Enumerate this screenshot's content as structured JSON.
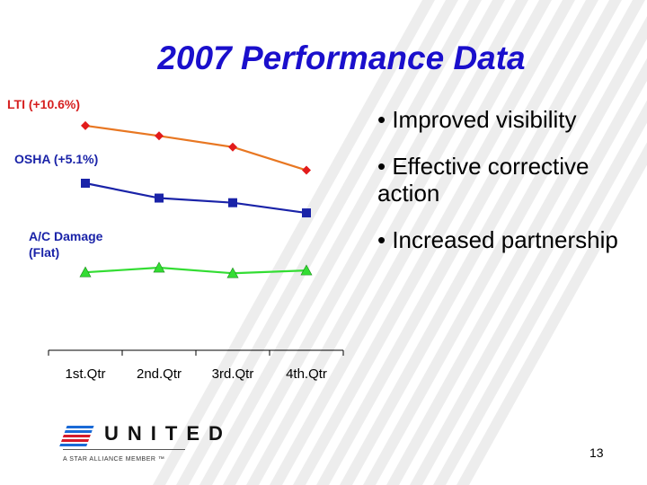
{
  "slide": {
    "title": "2007 Performance Data",
    "bullets": [
      "• Improved visibility",
      "• Effective corrective action",
      "• Increased partnership"
    ],
    "page_number": "13"
  },
  "logo": {
    "wordmark": "UNITED",
    "tagline": "A STAR ALLIANCE MEMBER ™"
  },
  "colors": {
    "title": "#1a0fcc",
    "lti": "#e87722",
    "lti_marker": "#e21b1b",
    "osha": "#1a23a8",
    "ac_damage": "#33dd33",
    "stripes": "#d8d8d8"
  },
  "chart_data": {
    "type": "line",
    "categories": [
      "1st.Qtr",
      "2nd.Qtr",
      "3rd.Qtr",
      "4th.Qtr"
    ],
    "series": [
      {
        "name": "LTI (+10.6%)",
        "values": [
          10.2,
          9.1,
          7.9,
          5.4
        ],
        "color": "#e87722",
        "marker": "diamond",
        "marker_color": "#e21b1b"
      },
      {
        "name": "OSHA (+5.1%)",
        "values": [
          4.0,
          2.4,
          1.9,
          0.8
        ],
        "color": "#1a23a8",
        "marker": "square",
        "marker_color": "#1a23a8"
      },
      {
        "name": "A/C Damage (Flat)",
        "values": [
          -5.6,
          -5.1,
          -5.7,
          -5.4
        ],
        "color": "#33dd33",
        "marker": "triangle",
        "marker_color": "#33dd33"
      }
    ],
    "ylim": [
      -14,
      16
    ],
    "title": "",
    "xlabel": "",
    "ylabel": "",
    "grid": false
  }
}
